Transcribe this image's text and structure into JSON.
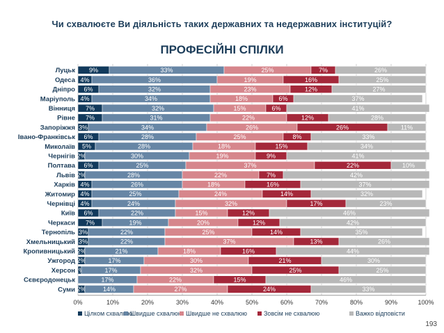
{
  "page": {
    "question": "Чи схвалюєте Ви діяльність таких державних та недержавних інституцій?",
    "subtitle": "ПРОФЕСІЙНІ СПІЛКИ",
    "page_number": "193"
  },
  "chart_data": {
    "type": "bar",
    "orientation": "horizontal",
    "stacked": true,
    "categories": [
      "Луцьк",
      "Одеса",
      "Дніпро",
      "Маріуполь",
      "Вінниця",
      "Рівне",
      "Запоріжжя",
      "Івано-Франківськ",
      "Миколаїв",
      "Чернігів",
      "Полтава",
      "Львів",
      "Харків",
      "Житомир",
      "Чернівці",
      "Київ",
      "Черкаси",
      "Тернопіль",
      "Хмельницький",
      "Кропивницький",
      "Ужгород",
      "Херсон",
      "Сєвєродонецьк",
      "Суми"
    ],
    "series": [
      {
        "name": "Цілком схвалюю",
        "color": "#123a5c",
        "label_color": "#ffffff",
        "values": [
          9,
          4,
          6,
          4,
          7,
          7,
          3,
          6,
          5,
          2,
          6,
          2,
          4,
          4,
          4,
          6,
          7,
          3,
          3,
          2,
          2,
          1,
          0,
          2
        ],
        "labels": [
          "9%",
          "4%",
          "6%",
          "4%",
          "7%",
          "7%",
          "3%",
          "6%",
          "5%",
          "2%",
          "6%",
          "2%",
          "4%",
          "4%",
          "4%",
          "6%",
          "7%",
          "3%",
          "3%",
          "2%",
          "2%",
          "1%",
          "",
          "2%"
        ]
      },
      {
        "name": "Швидше схвалюю",
        "color": "#6786a5",
        "label_color": "#ffffff",
        "values": [
          33,
          36,
          32,
          34,
          32,
          31,
          34,
          28,
          28,
          30,
          25,
          28,
          26,
          25,
          24,
          22,
          19,
          22,
          22,
          21,
          17,
          17,
          17,
          14
        ],
        "labels": [
          "33%",
          "36%",
          "32%",
          "34%",
          "32%",
          "31%",
          "34%",
          "28%",
          "28%",
          "30%",
          "25%",
          "28%",
          "26%",
          "25%",
          "24%",
          "22%",
          "19%",
          "22%",
          "22%",
          "21%",
          "17%",
          "17%",
          "17%",
          "14%"
        ]
      },
      {
        "name": "Швидше не схвалюю",
        "color": "#d6868c",
        "label_color": "#ffffff",
        "values": [
          25,
          19,
          23,
          18,
          15,
          22,
          26,
          25,
          18,
          19,
          37,
          22,
          18,
          24,
          32,
          15,
          20,
          25,
          37,
          18,
          30,
          32,
          22,
          27
        ],
        "labels": [
          "25%",
          "19%",
          "23%",
          "18%",
          "15%",
          "22%",
          "26%",
          "25%",
          "18%",
          "19%",
          "37%",
          "22%",
          "18%",
          "24%",
          "32%",
          "15%",
          "20%",
          "25%",
          "37%",
          "18%",
          "30%",
          "32%",
          "22%",
          "27%"
        ]
      },
      {
        "name": "Зовсім не схвалюю",
        "color": "#a4283a",
        "label_color": "#ffffff",
        "values": [
          7,
          16,
          12,
          6,
          6,
          12,
          26,
          8,
          15,
          9,
          22,
          7,
          16,
          14,
          17,
          12,
          12,
          14,
          13,
          16,
          21,
          25,
          15,
          24
        ],
        "labels": [
          "7%",
          "16%",
          "12%",
          "6%",
          "6%",
          "12%",
          "26%",
          "8%",
          "15%",
          "9%",
          "22%",
          "7%",
          "16%",
          "14%",
          "17%",
          "12%",
          "12%",
          "14%",
          "13%",
          "16%",
          "21%",
          "25%",
          "15%",
          "24%"
        ]
      },
      {
        "name": "Важко відповісти",
        "color": "#b8b8b8",
        "label_color": "#ffffff",
        "values": [
          26,
          25,
          27,
          37,
          41,
          28,
          11,
          33,
          34,
          41,
          10,
          42,
          37,
          32,
          23,
          46,
          42,
          35,
          26,
          44,
          30,
          25,
          46,
          33
        ],
        "labels": [
          "26%",
          "25%",
          "27%",
          "37%",
          "41%",
          "28%",
          "11%",
          "33%",
          "34%",
          "41%",
          "10%",
          "42%",
          "37%",
          "32%",
          "23%",
          "46%",
          "42%",
          "35%",
          "26%",
          "44%",
          "30%",
          "25%",
          "46%",
          "33%"
        ]
      }
    ],
    "x_ticks": [
      "0%",
      "10%",
      "20%",
      "30%",
      "40%",
      "50%",
      "60%",
      "70%",
      "80%",
      "90%",
      "100%"
    ],
    "xlim": [
      0,
      100
    ],
    "grid": true,
    "legend_position": "bottom"
  }
}
